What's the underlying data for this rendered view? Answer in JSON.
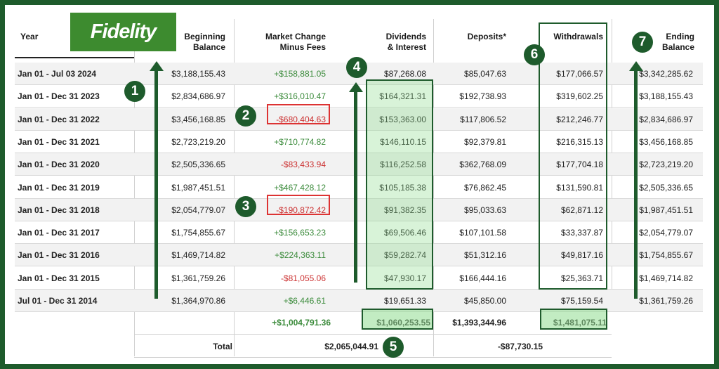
{
  "brand": {
    "logo_text": "Fidelity"
  },
  "headers": {
    "year": "Year",
    "beginning": [
      "Beginning",
      "Balance"
    ],
    "market": [
      "Market Change",
      "Minus Fees"
    ],
    "dividends": [
      "Dividends",
      "& Interest"
    ],
    "deposits": "Deposits*",
    "withdrawals": "Withdrawals",
    "ending": [
      "Ending",
      "Balance"
    ]
  },
  "rows": [
    {
      "year": "Jan 01 - Jul 03 2024",
      "beginning": "$3,188,155.43",
      "market": "+$158,881.05",
      "dividends": "$87,268.08",
      "deposits": "$85,047.63",
      "withdrawals": "$177,066.57",
      "ending": "$3,342,285.62"
    },
    {
      "year": "Jan 01 - Dec 31 2023",
      "beginning": "$2,834,686.97",
      "market": "+$316,010.47",
      "dividends": "$164,321.31",
      "deposits": "$192,738.93",
      "withdrawals": "$319,602.25",
      "ending": "$3,188,155.43"
    },
    {
      "year": "Jan 01 - Dec 31 2022",
      "beginning": "$3,456,168.85",
      "market": "-$680,404.63",
      "dividends": "$153,363.00",
      "deposits": "$117,806.52",
      "withdrawals": "$212,246.77",
      "ending": "$2,834,686.97"
    },
    {
      "year": "Jan 01 - Dec 31 2021",
      "beginning": "$2,723,219.20",
      "market": "+$710,774.82",
      "dividends": "$146,110.15",
      "deposits": "$92,379.81",
      "withdrawals": "$216,315.13",
      "ending": "$3,456,168.85"
    },
    {
      "year": "Jan 01 - Dec 31 2020",
      "beginning": "$2,505,336.65",
      "market": "-$83,433.94",
      "dividends": "$116,252.58",
      "deposits": "$362,768.09",
      "withdrawals": "$177,704.18",
      "ending": "$2,723,219.20"
    },
    {
      "year": "Jan 01 - Dec 31 2019",
      "beginning": "$1,987,451.51",
      "market": "+$467,428.12",
      "dividends": "$105,185.38",
      "deposits": "$76,862.45",
      "withdrawals": "$131,590.81",
      "ending": "$2,505,336.65"
    },
    {
      "year": "Jan 01 - Dec 31 2018",
      "beginning": "$2,054,779.07",
      "market": "-$190,872.42",
      "dividends": "$91,382.35",
      "deposits": "$95,033.63",
      "withdrawals": "$62,871.12",
      "ending": "$1,987,451.51"
    },
    {
      "year": "Jan 01 - Dec 31 2017",
      "beginning": "$1,754,855.67",
      "market": "+$156,653.23",
      "dividends": "$69,506.46",
      "deposits": "$107,101.58",
      "withdrawals": "$33,337.87",
      "ending": "$2,054,779.07"
    },
    {
      "year": "Jan 01 - Dec 31 2016",
      "beginning": "$1,469,714.82",
      "market": "+$224,363.11",
      "dividends": "$59,282.74",
      "deposits": "$51,312.16",
      "withdrawals": "$49,817.16",
      "ending": "$1,754,855.67"
    },
    {
      "year": "Jan 01 - Dec 31 2015",
      "beginning": "$1,361,759.26",
      "market": "-$81,055.06",
      "dividends": "$47,930.17",
      "deposits": "$166,444.16",
      "withdrawals": "$25,363.71",
      "ending": "$1,469,714.82"
    },
    {
      "year": "Jul 01 - Dec 31 2014",
      "beginning": "$1,364,970.86",
      "market": "+$6,446.61",
      "dividends": "$19,651.33",
      "deposits": "$45,850.00",
      "withdrawals": "$75,159.54",
      "ending": "$1,361,759.26"
    }
  ],
  "totals": {
    "market": "+$1,004,791.36",
    "dividends": "$1,060,253.55",
    "deposits": "$1,393,344.96",
    "withdrawals": "$1,481,075.11",
    "label": "Total",
    "total_gain": "$2,065,044.91",
    "net_flow": "-$87,730.15"
  },
  "badges": [
    "1",
    "2",
    "3",
    "4",
    "5",
    "6",
    "7"
  ],
  "colors": {
    "brand_green": "#1e5b2c",
    "logo_green": "#3d8b2f",
    "positive": "#3b8b3b",
    "negative": "#cc3333",
    "highlight_red": "#dd3333"
  }
}
